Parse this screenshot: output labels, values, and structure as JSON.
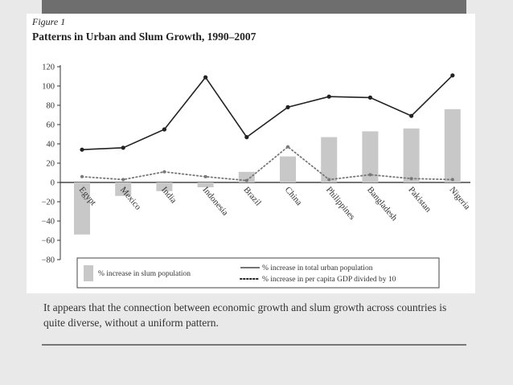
{
  "figure": {
    "label": "Figure 1",
    "title": "Patterns in Urban and Slum Growth, 1990–2007"
  },
  "caption": "It appears that the connection between economic growth and slum growth across countries is quite diverse, without a uniform pattern.",
  "colors": {
    "bar": "#c8c8c8",
    "line": "#222222",
    "dotted": "#777777"
  },
  "chart_data": {
    "type": "bar",
    "categories": [
      "Egypt",
      "Mexico",
      "India",
      "Indonesia",
      "Brazil",
      "China",
      "Philippines",
      "Bangladesh",
      "Pakistan",
      "Nigeria"
    ],
    "series": [
      {
        "name": "% increase in slum population",
        "type": "bar",
        "values": [
          -54,
          -14,
          -9,
          -5,
          11,
          27,
          47,
          53,
          56,
          76
        ]
      },
      {
        "name": "% increase in total urban population",
        "type": "line",
        "values": [
          34,
          36,
          55,
          109,
          47,
          78,
          89,
          88,
          69,
          111
        ]
      },
      {
        "name": "% increase in per capita GDP divided by 10",
        "type": "dotted-line",
        "values": [
          6,
          3,
          11,
          6,
          2,
          37,
          3,
          8,
          4,
          3
        ]
      }
    ],
    "yticks": [
      120,
      100,
      80,
      60,
      40,
      20,
      0,
      -20,
      -40,
      -60,
      -80
    ],
    "ylim": [
      -80,
      120
    ],
    "legend_position": "bottom"
  }
}
